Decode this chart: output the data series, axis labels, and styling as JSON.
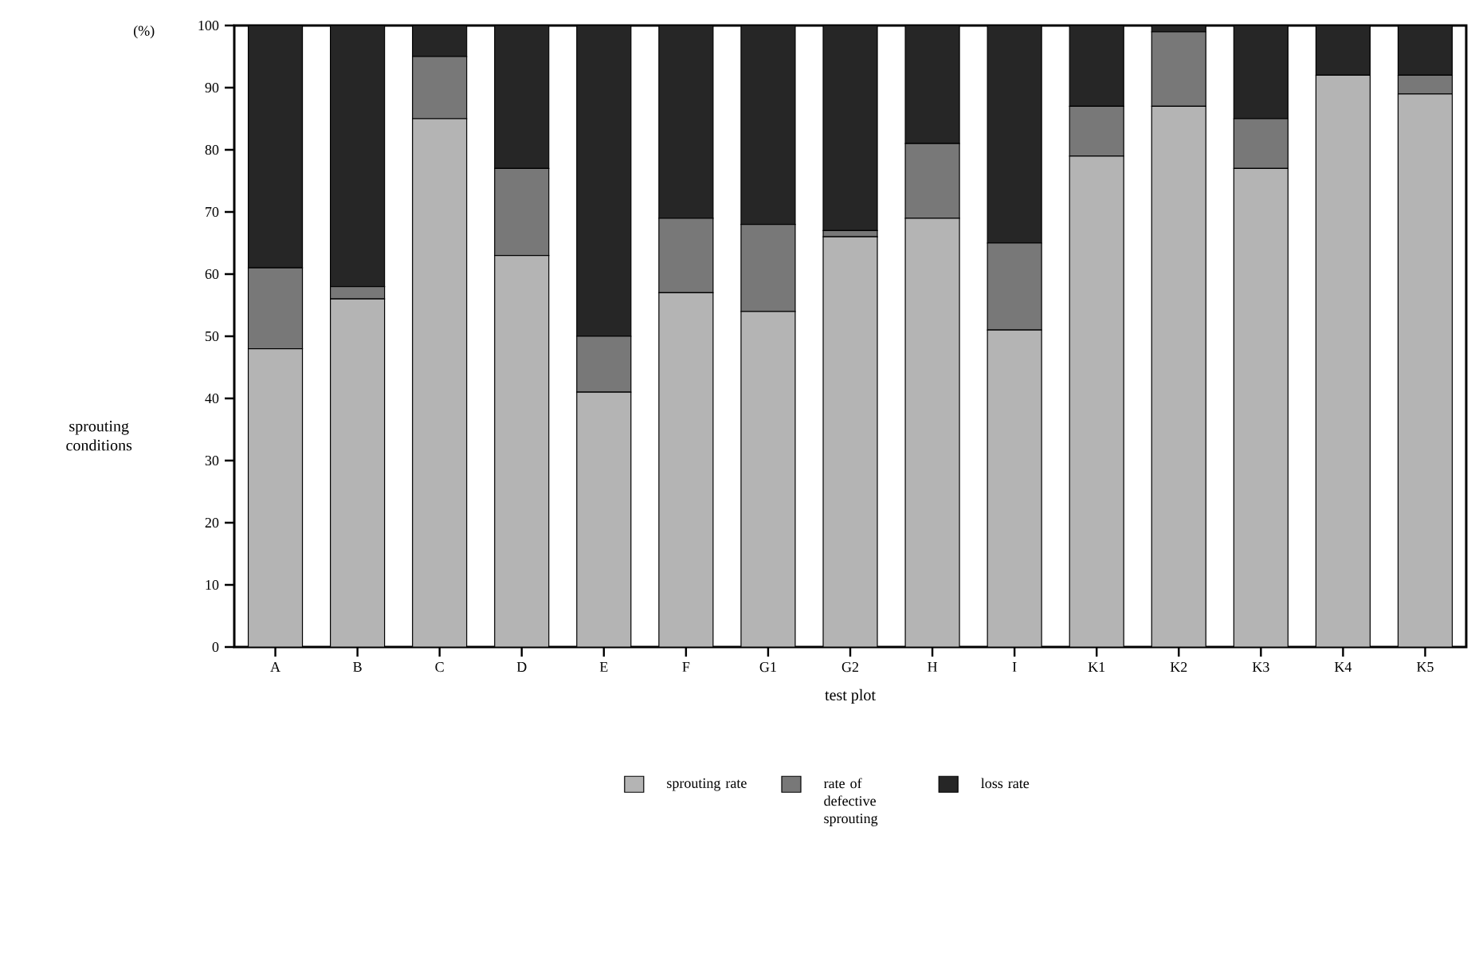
{
  "chart_data": {
    "type": "bar",
    "stacked": true,
    "xlabel": "test plot",
    "ylabel": "sprouting conditions",
    "annotations": [
      "(%)"
    ],
    "categories": [
      "A",
      "B",
      "C",
      "D",
      "E",
      "F",
      "G1",
      "G2",
      "H",
      "I",
      "K1",
      "K2",
      "K3",
      "K4",
      "K5"
    ],
    "series": [
      {
        "name": "sprouting rate",
        "color": "#b4b4b4",
        "values": [
          48,
          56,
          85,
          63,
          41,
          57,
          54,
          66,
          69,
          51,
          79,
          87,
          77,
          92,
          89
        ]
      },
      {
        "name": "rate of defective sprouting",
        "color": "#787878",
        "values": [
          13,
          2,
          10,
          14,
          9,
          12,
          14,
          1,
          12,
          14,
          8,
          12,
          8,
          0,
          3
        ]
      },
      {
        "name": "loss rate",
        "color": "#262626",
        "values": [
          39,
          42,
          5,
          23,
          50,
          31,
          32,
          33,
          19,
          35,
          13,
          1,
          15,
          8,
          8
        ]
      }
    ],
    "ylim": [
      0,
      100
    ],
    "yticks": [
      0,
      10,
      20,
      30,
      40,
      50,
      60,
      70,
      80,
      90,
      100
    ],
    "legend": "bottom",
    "grid": false
  }
}
